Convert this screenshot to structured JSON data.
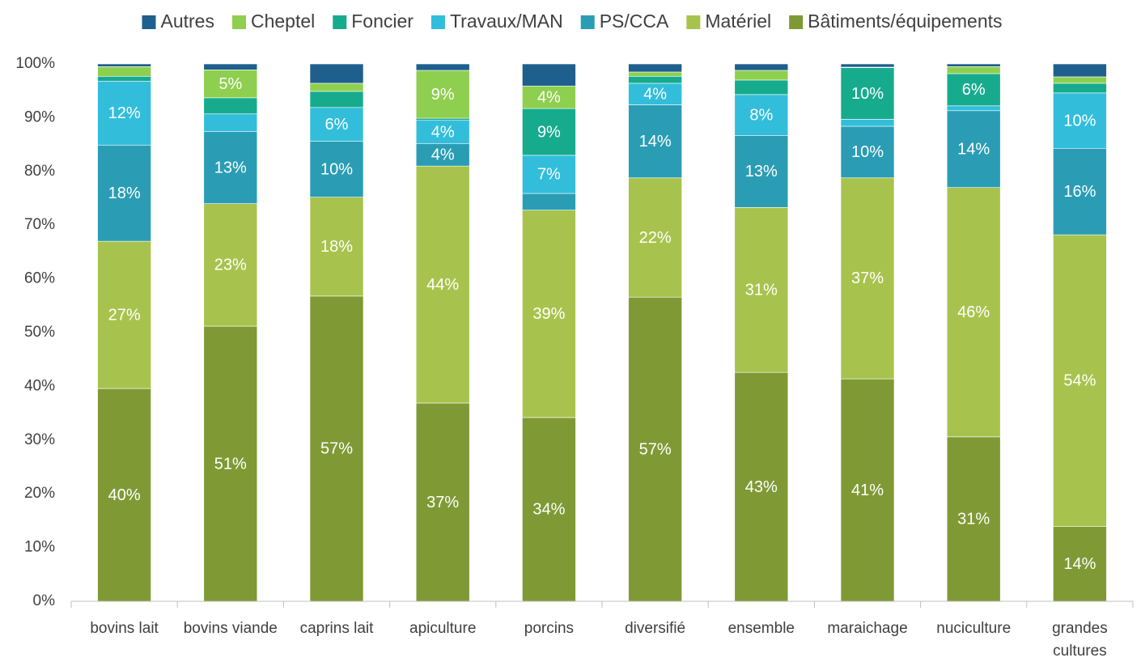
{
  "chart_data": {
    "type": "stacked_bar",
    "categories": [
      "bovins lait",
      "bovins viande",
      "caprins lait",
      "apiculture",
      "porcins",
      "diversifié",
      "ensemble",
      "maraichage",
      "nuciculture",
      "grandes cultures"
    ],
    "series": [
      {
        "name": "Bâtiments/équipements",
        "color": "#7f9a35",
        "values": [
          39.6,
          51.2,
          56.8,
          36.9,
          34.2,
          56.6,
          42.6,
          41.4,
          30.6,
          13.9
        ],
        "value_labels": [
          "40%",
          "51%",
          "57%",
          "37%",
          "34%",
          "57%",
          "43%",
          "41%",
          "31%",
          "14%"
        ]
      },
      {
        "name": "Matériel",
        "color": "#a8c34d",
        "values": [
          27.4,
          22.8,
          18.4,
          44.1,
          38.6,
          22.2,
          30.7,
          37.4,
          46.4,
          54.3
        ],
        "value_labels": [
          "27%",
          "23%",
          "18%",
          "44%",
          "39%",
          "22%",
          "31%",
          "37%",
          "46%",
          "54%"
        ]
      },
      {
        "name": "PS/CCA",
        "color": "#2a9db5",
        "values": [
          17.9,
          13.4,
          10.4,
          4.2,
          3.1,
          13.6,
          13.4,
          9.6,
          14.3,
          16.1
        ],
        "value_labels": [
          "18%",
          "13%",
          "10%",
          "4%",
          null,
          "14%",
          "13%",
          "10%",
          "14%",
          "16%"
        ]
      },
      {
        "name": "Travaux/MAN",
        "color": "#32bedb",
        "values": [
          11.9,
          3.3,
          6.3,
          4.3,
          7.1,
          4.0,
          7.6,
          1.3,
          0.9,
          10.3
        ],
        "value_labels": [
          "12%",
          null,
          "6%",
          "4%",
          "7%",
          "4%",
          "8%",
          null,
          null,
          "10%"
        ]
      },
      {
        "name": "Foncier",
        "color": "#17ab8e",
        "values": [
          0.9,
          3.0,
          3.0,
          0.4,
          8.7,
          1.3,
          2.7,
          9.6,
          6.0,
          1.8
        ],
        "value_labels": [
          null,
          null,
          null,
          null,
          "9%",
          null,
          null,
          "10%",
          "6%",
          null
        ]
      },
      {
        "name": "Cheptel",
        "color": "#8fcf4f",
        "values": [
          1.8,
          5.2,
          1.5,
          8.9,
          4.2,
          0.8,
          1.8,
          0.1,
          1.3,
          1.2
        ],
        "value_labels": [
          null,
          "5%",
          null,
          "9%",
          "4%",
          null,
          null,
          null,
          null,
          null
        ]
      },
      {
        "name": "Autres",
        "color": "#1e5f8e",
        "values": [
          0.5,
          1.1,
          3.6,
          1.2,
          4.1,
          1.5,
          1.2,
          0.6,
          0.5,
          2.4
        ],
        "value_labels": [
          null,
          null,
          null,
          null,
          null,
          null,
          null,
          null,
          null,
          null
        ]
      }
    ],
    "ylim": [
      0,
      100
    ],
    "yticks": [
      {
        "value": 0,
        "label": "0%"
      },
      {
        "value": 10,
        "label": "10%"
      },
      {
        "value": 20,
        "label": "20%"
      },
      {
        "value": 30,
        "label": "30%"
      },
      {
        "value": 40,
        "label": "40%"
      },
      {
        "value": 50,
        "label": "50%"
      },
      {
        "value": 60,
        "label": "60%"
      },
      {
        "value": 70,
        "label": "70%"
      },
      {
        "value": 80,
        "label": "80%"
      },
      {
        "value": 90,
        "label": "90%"
      },
      {
        "value": 100,
        "label": "100%"
      }
    ],
    "grid": false,
    "legend": "top"
  }
}
